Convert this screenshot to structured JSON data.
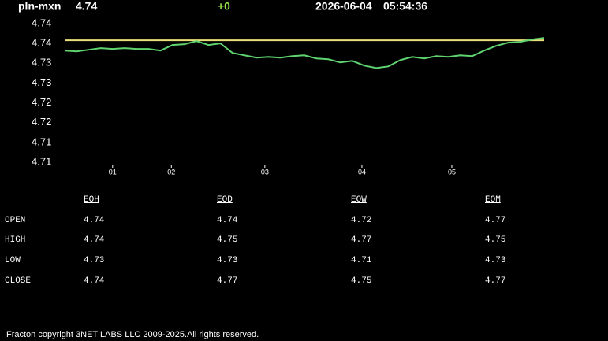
{
  "header": {
    "symbol": "pln-mxn",
    "price": "4.74",
    "change": "+0",
    "date": "2026-06-04",
    "time": "05:54:36"
  },
  "chart_data": {
    "type": "line",
    "series": [
      {
        "name": "pln-mxn",
        "color": "#5fd36f",
        "values": [
          4.7357,
          4.7355,
          4.7359,
          4.7363,
          4.7361,
          4.7363,
          4.7361,
          4.7361,
          4.7357,
          4.7371,
          4.7373,
          4.7381,
          4.7371,
          4.7375,
          4.7351,
          4.7345,
          4.7339,
          4.7341,
          4.7339,
          4.7343,
          4.7345,
          4.7337,
          4.7335,
          4.7327,
          4.7331,
          4.7319,
          4.7313,
          4.7317,
          4.7333,
          4.7341,
          4.7337,
          4.7343,
          4.7341,
          4.7345,
          4.7343,
          4.7357,
          4.7369,
          4.7377,
          4.7379,
          4.7385,
          4.7389
        ]
      }
    ],
    "reference_line": {
      "value": 4.7383,
      "color": "#e8e07a"
    },
    "xlim": [
      0,
      40
    ],
    "xticks": [
      {
        "value": 4,
        "label": "01"
      },
      {
        "value": 8.9,
        "label": "02"
      },
      {
        "value": 16.7,
        "label": "03"
      },
      {
        "value": 24.8,
        "label": "04"
      },
      {
        "value": 32.3,
        "label": "05"
      }
    ],
    "ylim": [
      4.7075,
      4.7425
    ],
    "yticks": [
      {
        "value": 4.7425,
        "label": "4.74"
      },
      {
        "value": 4.7375,
        "label": "4.74"
      },
      {
        "value": 4.7325,
        "label": "4.73"
      },
      {
        "value": 4.7275,
        "label": "4.73"
      },
      {
        "value": 4.7225,
        "label": "4.72"
      },
      {
        "value": 4.7175,
        "label": "4.72"
      },
      {
        "value": 4.7125,
        "label": "4.71"
      },
      {
        "value": 4.7075,
        "label": "4.71"
      }
    ]
  },
  "table": {
    "columns": [
      "EOH",
      "EOD",
      "EOW",
      "EOM"
    ],
    "rows": [
      {
        "label": "OPEN",
        "values": [
          4.74,
          4.74,
          4.72,
          4.77
        ]
      },
      {
        "label": "HIGH",
        "values": [
          4.74,
          4.75,
          4.77,
          4.75
        ]
      },
      {
        "label": "LOW",
        "values": [
          4.73,
          4.73,
          4.71,
          4.73
        ]
      },
      {
        "label": "CLOSE",
        "values": [
          4.74,
          4.77,
          4.75,
          4.77
        ]
      }
    ]
  },
  "footer": "Fracton copyright 3NET LABS LLC 2009-2025.All rights reserved."
}
